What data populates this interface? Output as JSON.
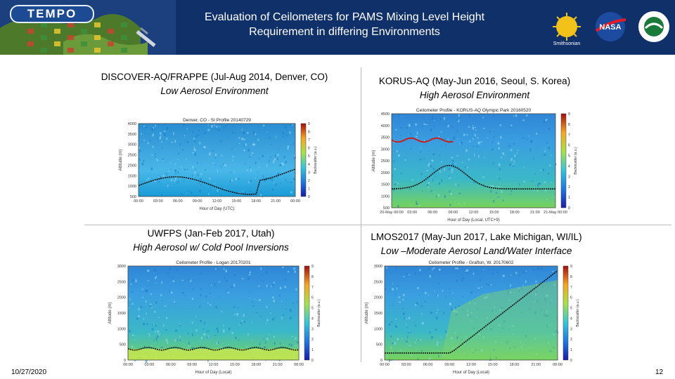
{
  "header": {
    "brand": "TEMPO",
    "title_line1": "Evaluation of Ceilometers for PAMS Mixing Level Height",
    "title_line2": "Requirement in differing Environments",
    "logo_smithsonian_label": "Smithsonian",
    "logo_nasa_label": "NASA"
  },
  "panels": [
    {
      "title": "DISCOVER-AQ/FRAPPE (Jul-Aug 2014, Denver, CO)",
      "subtitle": "Low Aerosol Environment",
      "plot_title": "Denver, CO - SI Profile 20140729",
      "y_ticks": [
        "4000",
        "3500",
        "3000",
        "2500",
        "2000",
        "1500",
        "1000",
        "500"
      ],
      "x_ticks": [
        "00:00",
        "03:00",
        "06:00",
        "09:00",
        "12:00",
        "15:00",
        "18:00",
        "21:00",
        "00:00"
      ],
      "ylabel": "Altitude (m)",
      "xlabel": "Hour of Day (UTC)",
      "cb_ticks": [
        "9",
        "8",
        "7",
        "6",
        "5",
        "4",
        "3",
        "2",
        "1",
        "0"
      ],
      "cb_label": "Backscatter (a.u.)"
    },
    {
      "title": "KORUS-AQ (May-Jun 2016, Seoul, S. Korea)",
      "subtitle": "High Aerosol Environment",
      "plot_title": "Ceilometer Profile - KORUS-AQ Olympic Park 20160520",
      "y_ticks": [
        "4500",
        "4000",
        "3500",
        "3000",
        "2500",
        "2000",
        "1500",
        "1000",
        "500"
      ],
      "x_ticks": [
        "20-May 00:00",
        "03:00",
        "06:00",
        "09:00",
        "12:00",
        "15:00",
        "18:00",
        "21:00",
        "21-May 00:00"
      ],
      "ylabel": "Altitude (m)",
      "xlabel": "Hour of Day (Local, UTC+9)",
      "cb_ticks": [
        "9",
        "8",
        "7",
        "6",
        "5",
        "4",
        "3",
        "2",
        "1",
        "0"
      ],
      "cb_label": "Backscatter (a.u.)"
    },
    {
      "title": "UWFPS (Jan-Feb 2017, Utah)",
      "subtitle": "High Aerosol w/ Cold Pool Inversions",
      "plot_title": "Ceilometer Profile - Logan 20170201",
      "y_ticks": [
        "3000",
        "2500",
        "2000",
        "1500",
        "1000",
        "500",
        "0"
      ],
      "x_ticks": [
        "00:00",
        "03:00",
        "06:00",
        "09:00",
        "12:00",
        "15:00",
        "18:00",
        "21:00",
        "00:00"
      ],
      "ylabel": "Altitude (m)",
      "xlabel": "Hour of Day (Local)",
      "cb_ticks": [
        "9",
        "8",
        "7",
        "6",
        "5",
        "4",
        "3",
        "2",
        "1",
        "0"
      ],
      "cb_label": "Backscatter (a.u.)"
    },
    {
      "title": "LMOS2017 (May-Jun 2017, Lake Michigan, WI/IL)",
      "subtitle": "Low –Moderate Aerosol Land/Water Interface",
      "plot_title": "Ceilometer Profile - Grafton, W. 20170602",
      "y_ticks": [
        "3000",
        "2500",
        "2000",
        "1500",
        "1000",
        "500",
        "0"
      ],
      "x_ticks": [
        "00:00",
        "03:00",
        "06:00",
        "09:00",
        "12:00",
        "15:00",
        "18:00",
        "21:00",
        "00:00"
      ],
      "ylabel": "Altitude (m)",
      "xlabel": "Hour of Day (Local)",
      "cb_ticks": [
        "9",
        "8",
        "7",
        "6",
        "5",
        "4",
        "3",
        "2",
        "1",
        "0"
      ],
      "cb_label": "Backscatter (a.u.)"
    }
  ],
  "footer": {
    "date": "10/27/2020",
    "page": "12"
  }
}
